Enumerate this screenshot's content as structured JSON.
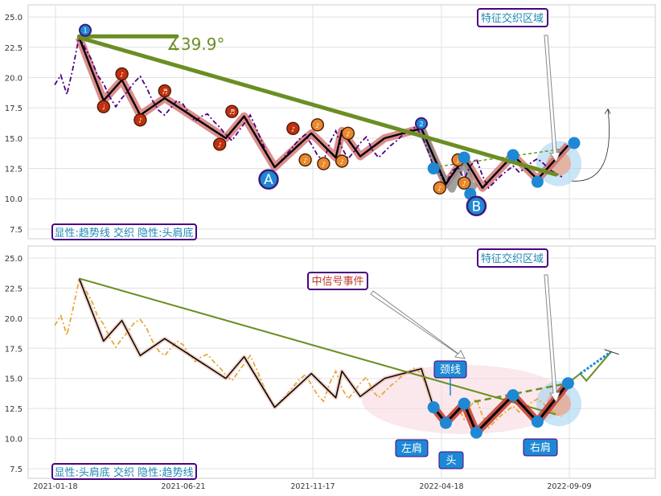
{
  "chart_data": [
    {
      "type": "line",
      "panel": "top",
      "ylim": [
        6.7,
        26.0
      ],
      "yticks": [
        "7.5",
        "10.0",
        "12.5",
        "15.0",
        "17.5",
        "20.0",
        "22.5",
        "25.0"
      ],
      "angle_label": "∡39.9°",
      "zone_label": "特征交织区域",
      "footer_label": "显性:趋势线 交织 隐性:头肩底",
      "pattern_labels": [
        "A",
        "B"
      ],
      "colors": {
        "price": "#4b0082",
        "trendline": "#6b8e23",
        "zigzag": "#000000",
        "zigzag_halo": "#cd5c5c",
        "marker": "#1e88d4"
      },
      "price": [
        [
          0,
          19.4
        ],
        [
          1,
          20.2
        ],
        [
          2,
          18.6
        ],
        [
          3,
          20.8
        ],
        [
          4,
          23.4
        ],
        [
          5,
          22.4
        ],
        [
          6,
          21.5
        ],
        [
          7,
          20.2
        ],
        [
          8,
          19.5
        ],
        [
          9,
          18.4
        ],
        [
          10,
          17.6
        ],
        [
          11,
          18.3
        ],
        [
          12,
          18.9
        ],
        [
          13,
          19.6
        ],
        [
          14,
          20.1
        ],
        [
          15,
          19.2
        ],
        [
          16,
          18.1
        ],
        [
          17,
          17.3
        ],
        [
          18,
          16.9
        ],
        [
          19,
          17.5
        ],
        [
          20,
          18.1
        ],
        [
          21,
          17.8
        ],
        [
          22,
          17.0
        ],
        [
          23,
          16.4
        ],
        [
          24,
          16.8
        ],
        [
          25,
          17.0
        ],
        [
          26,
          16.4
        ],
        [
          27,
          15.9
        ],
        [
          28,
          15.3
        ],
        [
          29,
          14.8
        ],
        [
          30,
          15.5
        ],
        [
          31,
          16.2
        ],
        [
          32,
          16.9
        ],
        [
          33,
          15.8
        ],
        [
          34,
          14.6
        ],
        [
          35,
          13.4
        ],
        [
          36,
          12.6
        ],
        [
          37,
          13.1
        ],
        [
          38,
          13.7
        ],
        [
          39,
          14.3
        ],
        [
          40,
          14.9
        ],
        [
          41,
          15.3
        ],
        [
          42,
          14.5
        ],
        [
          43,
          13.6
        ],
        [
          44,
          13.1
        ],
        [
          45,
          14.6
        ],
        [
          46,
          15.6
        ],
        [
          47,
          14.2
        ],
        [
          48,
          13.3
        ],
        [
          49,
          13.9
        ],
        [
          50,
          14.6
        ],
        [
          51,
          15.1
        ],
        [
          52,
          14.0
        ],
        [
          53,
          13.4
        ],
        [
          54,
          13.9
        ],
        [
          55,
          14.4
        ],
        [
          56,
          14.8
        ],
        [
          57,
          15.3
        ],
        [
          58,
          15.6
        ],
        [
          59,
          15.9
        ],
        [
          60,
          15.3
        ],
        [
          61,
          14.1
        ],
        [
          62,
          12.6
        ],
        [
          63,
          12.1
        ],
        [
          64,
          11.2
        ],
        [
          65,
          12.3
        ],
        [
          66,
          12.6
        ],
        [
          67,
          11.6
        ],
        [
          68,
          12.7
        ],
        [
          69,
          13.3
        ],
        [
          70,
          11.9
        ],
        [
          71,
          10.9
        ],
        [
          72,
          11.4
        ],
        [
          73,
          11.9
        ],
        [
          74,
          12.3
        ],
        [
          75,
          12.7
        ],
        [
          76,
          12.2
        ],
        [
          77,
          12.5
        ],
        [
          78,
          13.0
        ],
        [
          79,
          13.3
        ],
        [
          80,
          12.9
        ],
        [
          81,
          12.4
        ],
        [
          82,
          12.1
        ],
        [
          83,
          11.8
        ]
      ],
      "trendline": [
        [
          4,
          23.3
        ],
        [
          82,
          12.0
        ]
      ],
      "trend_top_stub": [
        [
          4,
          23.4
        ],
        [
          20,
          23.4
        ]
      ],
      "zigzag": [
        [
          4,
          23.3
        ],
        [
          8,
          18.1
        ],
        [
          11,
          19.8
        ],
        [
          14,
          16.9
        ],
        [
          18,
          18.3
        ],
        [
          28,
          15.0
        ],
        [
          31,
          16.8
        ],
        [
          36,
          12.6
        ],
        [
          42,
          15.4
        ],
        [
          46,
          13.4
        ],
        [
          47,
          15.6
        ],
        [
          50,
          13.5
        ],
        [
          54,
          15.0
        ],
        [
          60,
          15.8
        ],
        [
          64,
          11.2
        ],
        [
          67,
          13.4
        ],
        [
          70,
          10.9
        ],
        [
          75,
          13.6
        ],
        [
          79,
          11.6
        ],
        [
          84,
          14.4
        ]
      ],
      "zigzag_gray": [
        [
          60,
          15.8
        ],
        [
          63,
          12.2
        ],
        [
          65,
          10.8
        ],
        [
          67,
          13.4
        ],
        [
          68,
          11.2
        ],
        [
          69,
          10.9
        ]
      ],
      "orange_markers": [
        [
          8,
          17.6,
          "♩"
        ],
        [
          11,
          20.3,
          "♪"
        ],
        [
          14,
          16.5,
          "♪"
        ],
        [
          18,
          18.9,
          "♬"
        ],
        [
          27,
          14.5,
          "♪"
        ],
        [
          29,
          17.2,
          "♬"
        ],
        [
          39,
          15.8,
          "♪"
        ],
        [
          41,
          13.2,
          "♪"
        ],
        [
          43,
          16.1,
          "♪"
        ],
        [
          44,
          12.9,
          "♪"
        ],
        [
          47,
          13.1,
          "♪"
        ],
        [
          48,
          15.4,
          "♪"
        ],
        [
          63,
          10.9,
          "♪"
        ],
        [
          66,
          13.2,
          "♪"
        ],
        [
          67,
          11.3,
          "♪"
        ]
      ],
      "blue_markers": [
        [
          5,
          23.9,
          "1"
        ],
        [
          60,
          16.2,
          "2"
        ],
        [
          75,
          13.6,
          ""
        ],
        [
          79,
          11.4,
          ""
        ],
        [
          85,
          14.6,
          ""
        ],
        [
          62,
          12.5,
          ""
        ],
        [
          68,
          10.4,
          ""
        ],
        [
          67,
          13.4,
          ""
        ]
      ],
      "big_labels": [
        [
          35,
          11.6,
          "A"
        ],
        [
          69,
          9.4,
          "B"
        ]
      ],
      "dashed_neck": [
        [
          62,
          12.6
        ],
        [
          83,
          14.1
        ]
      ],
      "zone_center": [
        82.5,
        12.9
      ],
      "arrow_curve": [
        [
          82,
          11.2
        ],
        [
          90,
          17.4
        ]
      ]
    },
    {
      "type": "line",
      "panel": "bottom",
      "ylim": [
        6.7,
        26.0
      ],
      "yticks": [
        "7.5",
        "10.0",
        "12.5",
        "15.0",
        "17.5",
        "20.0",
        "22.5",
        "25.0"
      ],
      "xticks": [
        "2021-01-18",
        "2021-06-21",
        "2021-11-17",
        "2022-04-18",
        "2022-09-09"
      ],
      "zone_label": "特征交织区域",
      "event_label": "中信号事件",
      "neckline_label": "颈线",
      "left_shoulder_label": "左肩",
      "head_label": "头",
      "right_shoulder_label": "右肩",
      "footer_label": "显性:头肩底 交织 隐性:趋势线",
      "colors": {
        "price": "#e8a838",
        "trendline": "#6b8e23",
        "zigzag": "#000000",
        "pattern": "#c0392b",
        "marker": "#1e88d4",
        "projection": "#1e88d4"
      },
      "price": [
        [
          0,
          19.4
        ],
        [
          1,
          20.2
        ],
        [
          2,
          18.6
        ],
        [
          3,
          20.8
        ],
        [
          4,
          23.2
        ],
        [
          5,
          22.4
        ],
        [
          6,
          21.5
        ],
        [
          7,
          20.2
        ],
        [
          8,
          19.5
        ],
        [
          9,
          18.4
        ],
        [
          10,
          17.6
        ],
        [
          11,
          18.3
        ],
        [
          12,
          18.9
        ],
        [
          13,
          19.6
        ],
        [
          14,
          19.9
        ],
        [
          15,
          19.2
        ],
        [
          16,
          18.1
        ],
        [
          17,
          17.3
        ],
        [
          18,
          16.9
        ],
        [
          19,
          17.5
        ],
        [
          20,
          18.1
        ],
        [
          21,
          17.8
        ],
        [
          22,
          17.0
        ],
        [
          23,
          16.4
        ],
        [
          24,
          16.8
        ],
        [
          25,
          17.0
        ],
        [
          26,
          16.4
        ],
        [
          27,
          15.9
        ],
        [
          28,
          15.3
        ],
        [
          29,
          14.8
        ],
        [
          30,
          15.5
        ],
        [
          31,
          16.2
        ],
        [
          32,
          16.9
        ],
        [
          33,
          15.8
        ],
        [
          34,
          14.6
        ],
        [
          35,
          13.4
        ],
        [
          36,
          12.6
        ],
        [
          37,
          13.1
        ],
        [
          38,
          13.7
        ],
        [
          39,
          14.3
        ],
        [
          40,
          14.9
        ],
        [
          41,
          15.3
        ],
        [
          42,
          14.5
        ],
        [
          43,
          13.6
        ],
        [
          44,
          13.1
        ],
        [
          45,
          14.6
        ],
        [
          46,
          15.6
        ],
        [
          47,
          14.2
        ],
        [
          48,
          13.3
        ],
        [
          49,
          13.9
        ],
        [
          50,
          14.6
        ],
        [
          51,
          15.1
        ],
        [
          52,
          14.0
        ],
        [
          53,
          13.4
        ],
        [
          54,
          13.9
        ],
        [
          55,
          14.4
        ],
        [
          56,
          14.8
        ],
        [
          57,
          15.3
        ],
        [
          58,
          15.6
        ],
        [
          59,
          15.9
        ],
        [
          60,
          15.3
        ],
        [
          61,
          14.1
        ],
        [
          62,
          12.6
        ],
        [
          63,
          12.1
        ],
        [
          64,
          11.2
        ],
        [
          65,
          12.3
        ],
        [
          66,
          12.6
        ],
        [
          67,
          11.6
        ],
        [
          68,
          12.7
        ],
        [
          69,
          13.3
        ],
        [
          70,
          11.9
        ],
        [
          71,
          10.9
        ],
        [
          72,
          11.4
        ],
        [
          73,
          11.9
        ],
        [
          74,
          12.3
        ],
        [
          75,
          12.7
        ],
        [
          76,
          12.2
        ],
        [
          77,
          12.5
        ],
        [
          78,
          13.0
        ],
        [
          79,
          13.3
        ],
        [
          80,
          12.9
        ],
        [
          81,
          12.4
        ],
        [
          82,
          12.1
        ],
        [
          83,
          11.8
        ]
      ],
      "trendline": [
        [
          4,
          23.3
        ],
        [
          82,
          12.0
        ]
      ],
      "zigzag": [
        [
          4,
          23.3
        ],
        [
          8,
          18.1
        ],
        [
          11,
          19.8
        ],
        [
          14,
          16.9
        ],
        [
          18,
          18.3
        ],
        [
          28,
          15.0
        ],
        [
          31,
          16.8
        ],
        [
          36,
          12.6
        ],
        [
          42,
          15.4
        ],
        [
          46,
          13.4
        ],
        [
          47,
          15.6
        ],
        [
          50,
          13.5
        ],
        [
          54,
          15.0
        ],
        [
          60,
          15.8
        ],
        [
          62,
          12.6
        ]
      ],
      "pattern": [
        [
          62,
          12.6
        ],
        [
          64,
          11.3
        ],
        [
          67,
          12.9
        ],
        [
          69,
          10.5
        ],
        [
          75,
          13.6
        ],
        [
          79,
          11.4
        ],
        [
          84,
          14.6
        ]
      ],
      "pattern_markers": [
        [
          62,
          12.6
        ],
        [
          64,
          11.3
        ],
        [
          67,
          12.9
        ],
        [
          69,
          10.5
        ],
        [
          75,
          13.6
        ],
        [
          79,
          11.4
        ],
        [
          84,
          14.6
        ]
      ],
      "neckline": [
        [
          67,
          12.9
        ],
        [
          84,
          14.6
        ]
      ],
      "projection": [
        [
          84,
          14.6
        ],
        [
          86,
          15.4
        ],
        [
          87,
          14.8
        ],
        [
          91,
          17.2
        ]
      ],
      "ellipse": [
        [
          60,
          25.5
        ],
        [
          84,
          14.6
        ]
      ],
      "zone_center": [
        82.5,
        12.9
      ]
    }
  ]
}
